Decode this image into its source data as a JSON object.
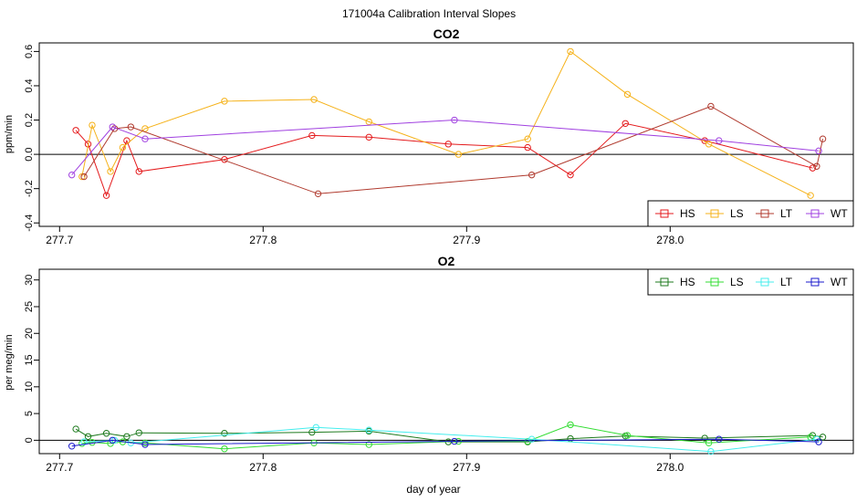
{
  "figure_title": "171004a   Calibration Interval Slopes",
  "x_axis_label": "day of year",
  "chart_data": [
    {
      "type": "scatter",
      "title": "CO2",
      "ylabel": "ppm/min",
      "xlim": [
        277.69,
        278.09
      ],
      "ylim": [
        -0.42,
        0.65
      ],
      "xticks": [
        277.7,
        277.8,
        277.9,
        278.0
      ],
      "xtick_labels": [
        "277.7",
        "277.8",
        "277.9",
        "278.0"
      ],
      "yticks": [
        -0.4,
        -0.2,
        0.0,
        0.2,
        0.4,
        0.6
      ],
      "ytick_labels": [
        "-0.4",
        "-0.2",
        "0.0",
        "0.2",
        "0.4",
        "0.6"
      ],
      "hline": 0,
      "legend_position": "bottom-right",
      "series": [
        {
          "name": "HS",
          "color": "#e41a1c",
          "x": [
            277.708,
            277.714,
            277.723,
            277.733,
            277.739,
            277.781,
            277.824,
            277.852,
            277.891,
            277.93,
            277.951,
            277.978,
            278.017,
            278.07
          ],
          "y": [
            0.14,
            0.06,
            -0.24,
            0.08,
            -0.1,
            -0.03,
            0.11,
            0.1,
            0.06,
            0.04,
            -0.12,
            0.18,
            0.08,
            -0.08
          ]
        },
        {
          "name": "LS",
          "color": "#f5b21a",
          "x": [
            277.711,
            277.716,
            277.725,
            277.731,
            277.742,
            277.781,
            277.825,
            277.852,
            277.896,
            277.93,
            277.951,
            277.979,
            278.019,
            278.069
          ],
          "y": [
            -0.13,
            0.17,
            -0.1,
            0.04,
            0.15,
            0.31,
            0.32,
            0.19,
            0.0,
            0.09,
            0.6,
            0.35,
            0.06,
            -0.24
          ]
        },
        {
          "name": "LT",
          "color": "#b03a2e",
          "x": [
            277.712,
            277.727,
            277.735,
            277.827,
            277.932,
            278.02,
            278.072,
            278.075
          ],
          "y": [
            -0.13,
            0.15,
            0.16,
            -0.23,
            -0.12,
            0.28,
            -0.07,
            0.09
          ]
        },
        {
          "name": "WT",
          "color": "#a040e0",
          "x": [
            277.706,
            277.726,
            277.742,
            277.894,
            278.024,
            278.073
          ],
          "y": [
            -0.12,
            0.16,
            0.09,
            0.2,
            0.08,
            0.02
          ]
        }
      ]
    },
    {
      "type": "scatter",
      "title": "O2",
      "ylabel": "per meg/min",
      "xlim": [
        277.69,
        278.09
      ],
      "ylim": [
        -2.5,
        32
      ],
      "xticks": [
        277.7,
        277.8,
        277.9,
        278.0
      ],
      "xtick_labels": [
        "277.7",
        "277.8",
        "277.9",
        "278.0"
      ],
      "yticks": [
        0,
        5,
        10,
        15,
        20,
        25,
        30
      ],
      "ytick_labels": [
        "0",
        "5",
        "10",
        "15",
        "20",
        "25",
        "30"
      ],
      "hline": 0,
      "legend_position": "top-right",
      "series": [
        {
          "name": "HS",
          "color": "#1e7a1e",
          "x": [
            277.708,
            277.714,
            277.723,
            277.733,
            277.739,
            277.781,
            277.824,
            277.852,
            277.891,
            277.93,
            277.951,
            277.978,
            278.017,
            278.07,
            278.075
          ],
          "y": [
            2.1,
            0.7,
            1.3,
            0.7,
            1.4,
            1.3,
            1.5,
            1.7,
            -0.3,
            -0.3,
            0.3,
            0.8,
            0.4,
            0.9,
            0.6
          ]
        },
        {
          "name": "LS",
          "color": "#33dd33",
          "x": [
            277.711,
            277.716,
            277.725,
            277.731,
            277.742,
            277.781,
            277.825,
            277.852,
            277.896,
            277.93,
            277.951,
            277.979,
            278.019,
            278.069
          ],
          "y": [
            -0.6,
            -0.4,
            -0.6,
            -0.3,
            -0.5,
            -1.6,
            -0.5,
            -0.8,
            -0.2,
            -0.2,
            2.9,
            0.9,
            -0.5,
            0.6
          ]
        },
        {
          "name": "LT",
          "color": "#44eeee",
          "x": [
            277.712,
            277.727,
            277.735,
            277.826,
            277.852,
            277.932,
            278.02,
            278.072
          ],
          "y": [
            -0.3,
            0.0,
            -0.5,
            2.4,
            1.9,
            0.2,
            -2.1,
            0.2
          ]
        },
        {
          "name": "WT",
          "color": "#1a1acc",
          "x": [
            277.706,
            277.726,
            277.742,
            277.894,
            278.024,
            278.073
          ],
          "y": [
            -1.1,
            0.0,
            -0.8,
            -0.2,
            0.2,
            -0.3
          ]
        }
      ]
    }
  ]
}
